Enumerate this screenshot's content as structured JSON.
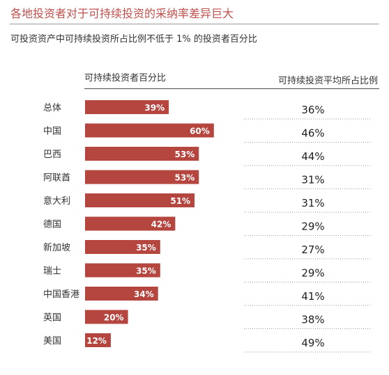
{
  "chart_data": {
    "type": "bar",
    "orientation": "horizontal",
    "title": "各地投资者对于可持续投资的采纳率差异巨大",
    "subtitle": "可投资资产中可持续投资所占比例不低于 1% 的投资者百分比",
    "left_column_header": "可持续投资者百分比",
    "right_column_header": "可持续投资平均所占比例",
    "categories": [
      "总体",
      "中国",
      "巴西",
      "阿联酋",
      "意大利",
      "德国",
      "新加坡",
      "瑞士",
      "中国香港",
      "英国",
      "美国"
    ],
    "series": [
      {
        "values": [
          39,
          60,
          53,
          53,
          51,
          42,
          35,
          35,
          34,
          20,
          12
        ]
      }
    ],
    "value_labels": [
      "39%",
      "60%",
      "53%",
      "53%",
      "51%",
      "42%",
      "35%",
      "35%",
      "34%",
      "20%",
      "12%"
    ],
    "avg_share_values": [
      36,
      46,
      44,
      31,
      31,
      29,
      27,
      29,
      41,
      38,
      49
    ],
    "avg_share_labels": [
      "36%",
      "46%",
      "44%",
      "31%",
      "31%",
      "29%",
      "27%",
      "29%",
      "41%",
      "38%",
      "49%"
    ],
    "bar_color": "#b5453f",
    "xlim": [
      0,
      100
    ],
    "grid": false,
    "legend": "none"
  }
}
